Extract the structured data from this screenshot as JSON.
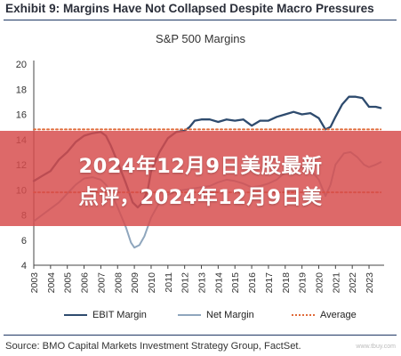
{
  "header": {
    "exhibit": "Exhibit 9: Margins Have Not Collapsed Despite Macro Pressures"
  },
  "banner": {
    "line1": "2024年12月9日美股最新",
    "line2": "点评，2024年12月9日美"
  },
  "source": "Source: BMO Capital Markets Investment Strategy Group, FactSet.",
  "watermark": "www.tbuy.com",
  "colors": {
    "ebit": "#2e4b6e",
    "net": "#8fa6bd",
    "average": "#e06a3a",
    "banner": "#d64c4c"
  },
  "chart_data": {
    "type": "line",
    "title": "S&P 500 Margins",
    "xlabel": "",
    "ylabel": "",
    "xlim": [
      2003,
      2023.9
    ],
    "ylim": [
      4,
      20
    ],
    "yticks": [
      4,
      6,
      8,
      10,
      12,
      14,
      16,
      18,
      20
    ],
    "xticks": [
      "2003",
      "2004",
      "2005",
      "2006",
      "2007",
      "2008",
      "2009",
      "2010",
      "2011",
      "2012",
      "2013",
      "2014",
      "2015",
      "2016",
      "2017",
      "2018",
      "2019",
      "2020",
      "2021",
      "2022",
      "2023"
    ],
    "grid": false,
    "legend": "bottom",
    "series": [
      {
        "name": "EBIT Margin",
        "style": "solid",
        "points": [
          [
            2003.0,
            10.7
          ],
          [
            2003.5,
            11.1
          ],
          [
            2004.0,
            11.5
          ],
          [
            2004.5,
            12.4
          ],
          [
            2005.0,
            13.0
          ],
          [
            2005.5,
            13.8
          ],
          [
            2006.0,
            14.3
          ],
          [
            2006.5,
            14.5
          ],
          [
            2007.0,
            14.6
          ],
          [
            2007.3,
            14.3
          ],
          [
            2007.6,
            13.5
          ],
          [
            2008.0,
            12.2
          ],
          [
            2008.5,
            10.5
          ],
          [
            2008.9,
            9.0
          ],
          [
            2009.2,
            8.6
          ],
          [
            2009.5,
            9.0
          ],
          [
            2009.8,
            10.0
          ],
          [
            2010.0,
            11.5
          ],
          [
            2010.5,
            13.0
          ],
          [
            2011.0,
            14.1
          ],
          [
            2011.5,
            14.6
          ],
          [
            2012.0,
            14.7
          ],
          [
            2012.3,
            15.0
          ],
          [
            2012.6,
            15.5
          ],
          [
            2013.0,
            15.6
          ],
          [
            2013.5,
            15.6
          ],
          [
            2014.0,
            15.4
          ],
          [
            2014.5,
            15.6
          ],
          [
            2015.0,
            15.5
          ],
          [
            2015.5,
            15.6
          ],
          [
            2016.0,
            15.1
          ],
          [
            2016.5,
            15.5
          ],
          [
            2017.0,
            15.5
          ],
          [
            2017.5,
            15.8
          ],
          [
            2018.0,
            16.0
          ],
          [
            2018.5,
            16.2
          ],
          [
            2019.0,
            16.0
          ],
          [
            2019.5,
            16.1
          ],
          [
            2020.0,
            15.7
          ],
          [
            2020.4,
            14.8
          ],
          [
            2020.7,
            15.0
          ],
          [
            2021.0,
            15.8
          ],
          [
            2021.4,
            16.8
          ],
          [
            2021.8,
            17.4
          ],
          [
            2022.2,
            17.4
          ],
          [
            2022.6,
            17.3
          ],
          [
            2023.0,
            16.6
          ],
          [
            2023.4,
            16.6
          ],
          [
            2023.7,
            16.5
          ]
        ]
      },
      {
        "name": "Net Margin",
        "style": "solid",
        "points": [
          [
            2003.0,
            7.5
          ],
          [
            2003.5,
            8.0
          ],
          [
            2004.0,
            8.5
          ],
          [
            2004.5,
            9.0
          ],
          [
            2005.0,
            9.7
          ],
          [
            2005.5,
            10.4
          ],
          [
            2006.0,
            10.9
          ],
          [
            2006.5,
            11.0
          ],
          [
            2007.0,
            10.8
          ],
          [
            2007.3,
            10.4
          ],
          [
            2007.6,
            9.8
          ],
          [
            2008.0,
            8.6
          ],
          [
            2008.5,
            7.0
          ],
          [
            2008.8,
            5.8
          ],
          [
            2009.0,
            5.4
          ],
          [
            2009.3,
            5.6
          ],
          [
            2009.6,
            6.3
          ],
          [
            2010.0,
            7.8
          ],
          [
            2010.5,
            9.0
          ],
          [
            2011.0,
            9.6
          ],
          [
            2011.5,
            9.9
          ],
          [
            2012.0,
            10.0
          ],
          [
            2012.5,
            10.1
          ],
          [
            2013.0,
            10.2
          ],
          [
            2013.5,
            10.3
          ],
          [
            2014.0,
            10.6
          ],
          [
            2014.5,
            10.8
          ],
          [
            2015.0,
            10.7
          ],
          [
            2015.5,
            10.5
          ],
          [
            2016.0,
            10.2
          ],
          [
            2016.5,
            10.3
          ],
          [
            2017.0,
            10.5
          ],
          [
            2017.5,
            10.8
          ],
          [
            2018.0,
            11.4
          ],
          [
            2018.5,
            12.0
          ],
          [
            2019.0,
            11.8
          ],
          [
            2019.5,
            11.6
          ],
          [
            2020.0,
            10.8
          ],
          [
            2020.4,
            9.5
          ],
          [
            2020.7,
            10.4
          ],
          [
            2021.0,
            12.0
          ],
          [
            2021.5,
            12.9
          ],
          [
            2021.9,
            13.0
          ],
          [
            2022.3,
            12.6
          ],
          [
            2022.7,
            12.0
          ],
          [
            2023.0,
            11.8
          ],
          [
            2023.4,
            12.0
          ],
          [
            2023.7,
            12.2
          ]
        ]
      },
      {
        "name": "Average",
        "style": "dotted",
        "points": [
          [
            2003.0,
            9.8
          ],
          [
            2023.7,
            9.8
          ]
        ]
      },
      {
        "name": "Average",
        "style": "dotted",
        "points": [
          [
            2003.0,
            14.8
          ],
          [
            2023.7,
            14.8
          ]
        ]
      }
    ]
  }
}
